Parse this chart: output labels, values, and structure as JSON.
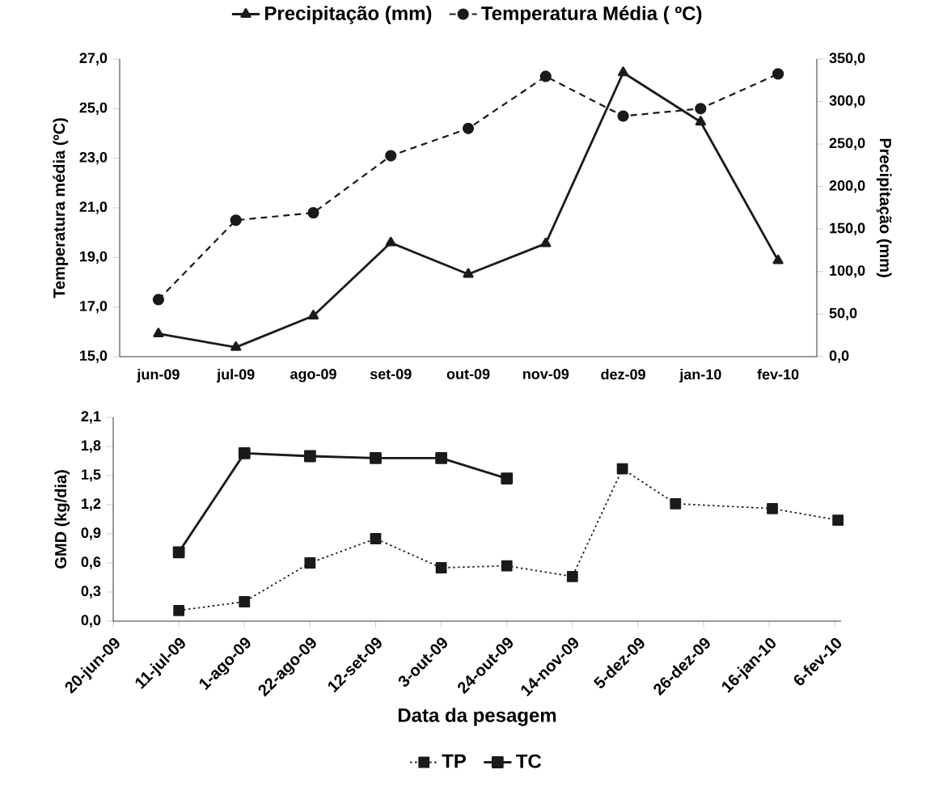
{
  "chart_data": [
    {
      "type": "line",
      "categories": [
        "jun-09",
        "jul-09",
        "ago-09",
        "set-09",
        "out-09",
        "nov-09",
        "dez-09",
        "jan-10",
        "fev-10"
      ],
      "series": [
        {
          "name": "Precipitação (mm)",
          "color": "#1a1a1a",
          "axis": "y2",
          "marker": "triangle",
          "line_style": "solid",
          "values": [
            27,
            11,
            48,
            134,
            97,
            133,
            334,
            276,
            113
          ]
        },
        {
          "name": "Temperatura Média ( ºC)",
          "color": "#1a1a1a",
          "axis": "y",
          "marker": "circle",
          "line_style": "dashed",
          "values": [
            17.3,
            20.5,
            20.8,
            23.1,
            24.2,
            26.3,
            24.7,
            25.0,
            26.4
          ]
        }
      ],
      "ylabel": "Temperatura média (ºC)",
      "y2label": "Precipitação (mm)",
      "ylim": [
        15,
        27
      ],
      "yticks": [
        {
          "value": 15,
          "label": "15,0"
        },
        {
          "value": 17,
          "label": "17,0"
        },
        {
          "value": 19,
          "label": "19,0"
        },
        {
          "value": 21,
          "label": "21,0"
        },
        {
          "value": 23,
          "label": "23,0"
        },
        {
          "value": 25,
          "label": "25,0"
        },
        {
          "value": 27,
          "label": "27,0"
        }
      ],
      "y2lim": [
        0,
        350
      ],
      "y2ticks": [
        {
          "value": 0,
          "label": "0,0"
        },
        {
          "value": 50,
          "label": "50,0"
        },
        {
          "value": 100,
          "label": "100,0"
        },
        {
          "value": 150,
          "label": "150,0"
        },
        {
          "value": 200,
          "label": "200,0"
        },
        {
          "value": 250,
          "label": "250,0"
        },
        {
          "value": 300,
          "label": "300,0"
        },
        {
          "value": 350,
          "label": "350,0"
        }
      ],
      "legend": "top"
    },
    {
      "type": "line",
      "xlabel": "Data da pesagem",
      "ylabel": "GMD (kg/dia)",
      "series": [
        {
          "name": "TP",
          "color": "#1a1a1a",
          "marker": "square",
          "line_style": "dotted",
          "x": [
            "2009-07-11",
            "2009-08-01",
            "2009-08-22",
            "2009-09-12",
            "2009-10-03",
            "2009-10-24",
            "2009-11-14",
            "2009-11-30",
            "2009-12-17",
            "2010-01-17",
            "2010-02-07"
          ],
          "values": [
            0.11,
            0.2,
            0.6,
            0.85,
            0.55,
            0.57,
            0.46,
            1.57,
            1.21,
            1.16,
            1.04
          ]
        },
        {
          "name": "TC",
          "color": "#1a1a1a",
          "marker": "square",
          "line_style": "solid",
          "x": [
            "2009-07-11",
            "2009-08-01",
            "2009-08-22",
            "2009-09-12",
            "2009-10-03",
            "2009-10-24"
          ],
          "values": [
            0.71,
            1.73,
            1.7,
            1.68,
            1.68,
            1.47
          ]
        }
      ],
      "xlim": [
        "2009-06-20",
        "2010-02-08"
      ],
      "xticks": [
        {
          "value": "2009-06-20",
          "label": "20-jun-09"
        },
        {
          "value": "2009-07-11",
          "label": "11-jul-09"
        },
        {
          "value": "2009-08-01",
          "label": "1-ago-09"
        },
        {
          "value": "2009-08-22",
          "label": "22-ago-09"
        },
        {
          "value": "2009-09-12",
          "label": "12-set-09"
        },
        {
          "value": "2009-10-03",
          "label": "3-out-09"
        },
        {
          "value": "2009-10-24",
          "label": "24-out-09"
        },
        {
          "value": "2009-11-14",
          "label": "14-nov-09"
        },
        {
          "value": "2009-12-05",
          "label": "5-dez-09"
        },
        {
          "value": "2009-12-26",
          "label": "26-dez-09"
        },
        {
          "value": "2010-01-16",
          "label": "16-jan-10"
        },
        {
          "value": "2010-02-06",
          "label": "6-fev-10"
        }
      ],
      "ylim": [
        0,
        2.1
      ],
      "yticks": [
        {
          "value": 0,
          "label": "0,0"
        },
        {
          "value": 0.3,
          "label": "0,3"
        },
        {
          "value": 0.6,
          "label": "0,6"
        },
        {
          "value": 0.9,
          "label": "0,9"
        },
        {
          "value": 1.2,
          "label": "1,2"
        },
        {
          "value": 1.5,
          "label": "1,5"
        },
        {
          "value": 1.8,
          "label": "1,8"
        },
        {
          "value": 2.1,
          "label": "2,1"
        }
      ],
      "legend": "bottom"
    }
  ]
}
